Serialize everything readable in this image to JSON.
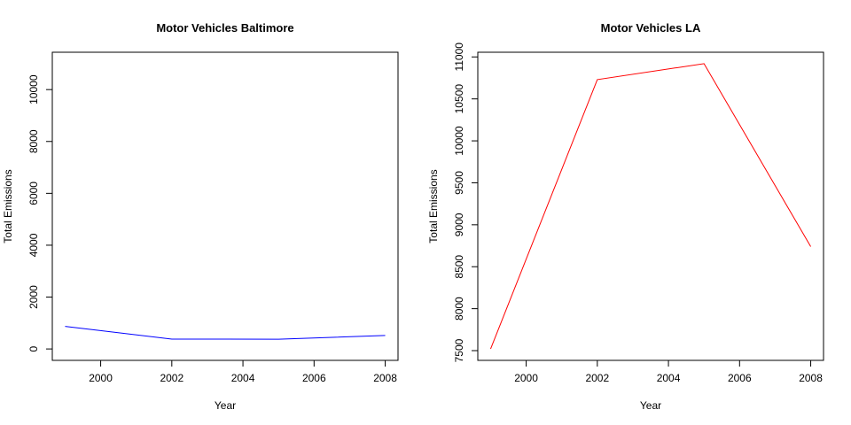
{
  "chart_data": [
    {
      "type": "line",
      "title": "Motor Vehicles Baltimore",
      "xlabel": "Year",
      "ylabel": "Total Emissions",
      "x": [
        1999,
        2002,
        2005,
        2008
      ],
      "series": [
        {
          "values": [
            870,
            380,
            375,
            520
          ],
          "color": "#0000FF"
        }
      ],
      "xlim": [
        1999,
        2008
      ],
      "ylim": [
        0,
        11000
      ],
      "xticks": [
        "2000",
        "2002",
        "2004",
        "2006",
        "2008"
      ],
      "yticks": [
        "0",
        "2000",
        "4000",
        "6000",
        "8000",
        "10000"
      ],
      "grid": false
    },
    {
      "type": "line",
      "title": "Motor Vehicles LA",
      "xlabel": "Year",
      "ylabel": "Total Emissions",
      "x": [
        1999,
        2002,
        2005,
        2008
      ],
      "series": [
        {
          "values": [
            7520,
            10730,
            10920,
            8740
          ],
          "color": "#FF0000"
        }
      ],
      "xlim": [
        1999,
        2008
      ],
      "ylim": [
        7520,
        10920
      ],
      "xticks": [
        "2000",
        "2002",
        "2004",
        "2006",
        "2008"
      ],
      "yticks": [
        "7500",
        "8000",
        "8500",
        "9000",
        "9500",
        "10000",
        "10500",
        "11000"
      ],
      "grid": false
    }
  ]
}
